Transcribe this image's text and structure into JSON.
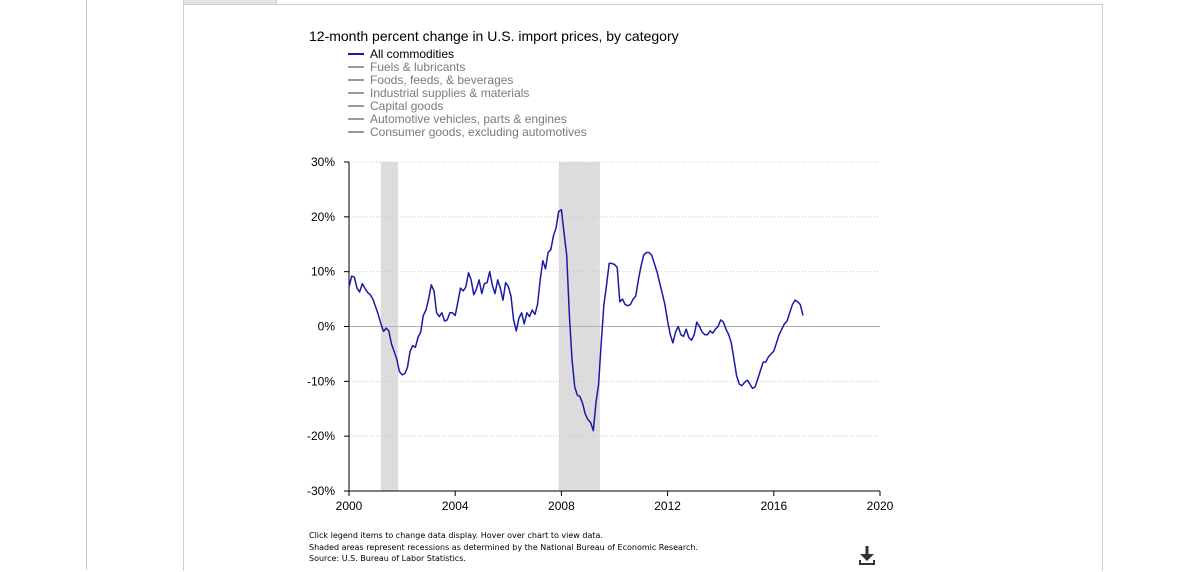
{
  "chart_data": {
    "type": "line",
    "title": "12-month percent change in U.S. import prices, by category",
    "series": [
      {
        "name": "All commodities",
        "active": true,
        "color": "#1a1aa6",
        "points": [
          [
            2000.0,
            7.2
          ],
          [
            2000.1,
            9.2
          ],
          [
            2000.2,
            9.0
          ],
          [
            2000.3,
            7.0
          ],
          [
            2000.4,
            6.3
          ],
          [
            2000.5,
            7.8
          ],
          [
            2000.6,
            7.0
          ],
          [
            2000.7,
            6.2
          ],
          [
            2000.8,
            5.8
          ],
          [
            2000.9,
            5.0
          ],
          [
            2001.0,
            3.6
          ],
          [
            2001.1,
            2.2
          ],
          [
            2001.2,
            0.5
          ],
          [
            2001.3,
            -0.9
          ],
          [
            2001.4,
            -0.3
          ],
          [
            2001.5,
            -0.8
          ],
          [
            2001.6,
            -3.2
          ],
          [
            2001.7,
            -4.5
          ],
          [
            2001.8,
            -6.0
          ],
          [
            2001.9,
            -8.2
          ],
          [
            2002.0,
            -8.8
          ],
          [
            2002.1,
            -8.6
          ],
          [
            2002.2,
            -7.5
          ],
          [
            2002.3,
            -4.5
          ],
          [
            2002.4,
            -3.5
          ],
          [
            2002.5,
            -3.8
          ],
          [
            2002.6,
            -2.0
          ],
          [
            2002.7,
            -1.0
          ],
          [
            2002.8,
            2.0
          ],
          [
            2002.9,
            3.0
          ],
          [
            2003.0,
            5.0
          ],
          [
            2003.1,
            7.6
          ],
          [
            2003.2,
            6.5
          ],
          [
            2003.3,
            2.5
          ],
          [
            2003.4,
            1.8
          ],
          [
            2003.5,
            2.5
          ],
          [
            2003.6,
            1.0
          ],
          [
            2003.7,
            1.2
          ],
          [
            2003.8,
            2.5
          ],
          [
            2003.9,
            2.5
          ],
          [
            2004.0,
            2.0
          ],
          [
            2004.1,
            4.5
          ],
          [
            2004.2,
            7.0
          ],
          [
            2004.3,
            6.5
          ],
          [
            2004.4,
            7.2
          ],
          [
            2004.5,
            9.8
          ],
          [
            2004.6,
            8.5
          ],
          [
            2004.7,
            5.8
          ],
          [
            2004.8,
            6.8
          ],
          [
            2004.9,
            8.5
          ],
          [
            2005.0,
            6.0
          ],
          [
            2005.1,
            7.8
          ],
          [
            2005.2,
            8.0
          ],
          [
            2005.3,
            10.0
          ],
          [
            2005.4,
            7.5
          ],
          [
            2005.5,
            6.0
          ],
          [
            2005.6,
            8.5
          ],
          [
            2005.7,
            7.0
          ],
          [
            2005.8,
            4.8
          ],
          [
            2005.9,
            8.0
          ],
          [
            2006.0,
            7.3
          ],
          [
            2006.1,
            5.5
          ],
          [
            2006.2,
            1.2
          ],
          [
            2006.3,
            -0.8
          ],
          [
            2006.4,
            1.5
          ],
          [
            2006.5,
            2.5
          ],
          [
            2006.6,
            0.5
          ],
          [
            2006.7,
            2.5
          ],
          [
            2006.8,
            1.8
          ],
          [
            2006.9,
            3.0
          ],
          [
            2007.0,
            2.2
          ],
          [
            2007.1,
            4.0
          ],
          [
            2007.2,
            8.5
          ],
          [
            2007.3,
            12.0
          ],
          [
            2007.4,
            10.5
          ],
          [
            2007.5,
            13.5
          ],
          [
            2007.6,
            14.0
          ],
          [
            2007.7,
            16.5
          ],
          [
            2007.8,
            18.0
          ],
          [
            2007.9,
            21.0
          ],
          [
            2008.0,
            21.3
          ],
          [
            2008.1,
            17.0
          ],
          [
            2008.2,
            13.0
          ],
          [
            2008.3,
            2.0
          ],
          [
            2008.4,
            -6.0
          ],
          [
            2008.5,
            -11.0
          ],
          [
            2008.6,
            -12.5
          ],
          [
            2008.7,
            -12.8
          ],
          [
            2008.8,
            -14.0
          ],
          [
            2008.9,
            -16.0
          ],
          [
            2009.0,
            -17.0
          ],
          [
            2009.1,
            -17.5
          ],
          [
            2009.2,
            -19.0
          ],
          [
            2009.3,
            -14.0
          ],
          [
            2009.4,
            -10.5
          ],
          [
            2009.5,
            -3.0
          ],
          [
            2009.6,
            4.0
          ],
          [
            2009.7,
            7.5
          ],
          [
            2009.8,
            11.5
          ],
          [
            2009.9,
            11.5
          ],
          [
            2010.0,
            11.3
          ],
          [
            2010.1,
            10.8
          ],
          [
            2010.2,
            4.5
          ],
          [
            2010.3,
            5.0
          ],
          [
            2010.4,
            4.0
          ],
          [
            2010.5,
            3.8
          ],
          [
            2010.6,
            4.0
          ],
          [
            2010.7,
            5.0
          ],
          [
            2010.8,
            5.5
          ],
          [
            2010.9,
            8.5
          ],
          [
            2011.0,
            11.0
          ],
          [
            2011.1,
            13.0
          ],
          [
            2011.2,
            13.5
          ],
          [
            2011.3,
            13.5
          ],
          [
            2011.4,
            13.0
          ],
          [
            2011.5,
            11.5
          ],
          [
            2011.6,
            10.0
          ],
          [
            2011.7,
            8.0
          ],
          [
            2011.8,
            6.0
          ],
          [
            2011.9,
            4.0
          ],
          [
            2012.0,
            1.0
          ],
          [
            2012.1,
            -1.5
          ],
          [
            2012.2,
            -3.0
          ],
          [
            2012.3,
            -1.0
          ],
          [
            2012.4,
            0.0
          ],
          [
            2012.5,
            -1.5
          ],
          [
            2012.6,
            -1.8
          ],
          [
            2012.7,
            -0.5
          ],
          [
            2012.8,
            -2.0
          ],
          [
            2012.9,
            -2.5
          ],
          [
            2013.0,
            -1.5
          ],
          [
            2013.1,
            0.8
          ],
          [
            2013.2,
            0.0
          ],
          [
            2013.3,
            -1.0
          ],
          [
            2013.4,
            -1.5
          ],
          [
            2013.5,
            -1.5
          ],
          [
            2013.6,
            -0.8
          ],
          [
            2013.7,
            -1.2
          ],
          [
            2013.8,
            -0.5
          ],
          [
            2013.9,
            0.0
          ],
          [
            2014.0,
            1.2
          ],
          [
            2014.1,
            0.8
          ],
          [
            2014.2,
            -0.5
          ],
          [
            2014.3,
            -1.5
          ],
          [
            2014.4,
            -3.0
          ],
          [
            2014.5,
            -6.0
          ],
          [
            2014.6,
            -9.0
          ],
          [
            2014.7,
            -10.5
          ],
          [
            2014.8,
            -10.8
          ],
          [
            2014.9,
            -10.2
          ],
          [
            2015.0,
            -9.8
          ],
          [
            2015.1,
            -10.5
          ],
          [
            2015.2,
            -11.3
          ],
          [
            2015.3,
            -11.0
          ],
          [
            2015.4,
            -9.5
          ],
          [
            2015.5,
            -8.0
          ],
          [
            2015.6,
            -6.5
          ],
          [
            2015.7,
            -6.5
          ],
          [
            2015.8,
            -5.5
          ],
          [
            2015.9,
            -5.0
          ],
          [
            2016.0,
            -4.5
          ],
          [
            2016.1,
            -3.0
          ],
          [
            2016.2,
            -1.5
          ],
          [
            2016.3,
            -0.5
          ],
          [
            2016.4,
            0.5
          ],
          [
            2016.5,
            1.0
          ],
          [
            2016.6,
            2.5
          ],
          [
            2016.7,
            4.0
          ],
          [
            2016.8,
            4.8
          ],
          [
            2016.9,
            4.5
          ],
          [
            2017.0,
            4.0
          ],
          [
            2017.1,
            2.0
          ]
        ]
      },
      {
        "name": "Fuels & lubricants",
        "active": false,
        "color": "#9a9a9a",
        "points": []
      },
      {
        "name": "Foods, feeds, & beverages",
        "active": false,
        "color": "#9a9a9a",
        "points": []
      },
      {
        "name": "Industrial supplies & materials",
        "active": false,
        "color": "#9a9a9a",
        "points": []
      },
      {
        "name": "Capital goods",
        "active": false,
        "color": "#9a9a9a",
        "points": []
      },
      {
        "name": "Automotive vehicles, parts & engines",
        "active": false,
        "color": "#9a9a9a",
        "points": []
      },
      {
        "name": "Consumer goods, excluding automotives",
        "active": false,
        "color": "#9a9a9a",
        "points": []
      }
    ],
    "recessions": [
      [
        2001.2,
        2001.85
      ],
      [
        2007.9,
        2009.45
      ]
    ],
    "xlim": [
      2000,
      2020
    ],
    "ylim": [
      -30,
      30
    ],
    "xticks": [
      2000,
      2004,
      2008,
      2012,
      2016,
      2020
    ],
    "xtick_labels": [
      "2000",
      "2004",
      "2008",
      "2012",
      "2016",
      "2020"
    ],
    "yticks": [
      30,
      20,
      10,
      0,
      -10,
      -20,
      -30
    ],
    "ytick_labels": [
      "30%",
      "20%",
      "10%",
      "0%",
      "-10%",
      "-20%",
      "-30%"
    ],
    "grid": true,
    "legend_position": "top-left",
    "xlabel": "",
    "ylabel": ""
  },
  "notes": {
    "line1": "Click legend items to change data display. Hover over chart to view data.",
    "line2": "Shaded areas represent recessions as determined by the National Bureau of Economic Research.",
    "line3": "Source: U.S. Bureau of Labor Statistics."
  },
  "download_icon": "download-icon"
}
